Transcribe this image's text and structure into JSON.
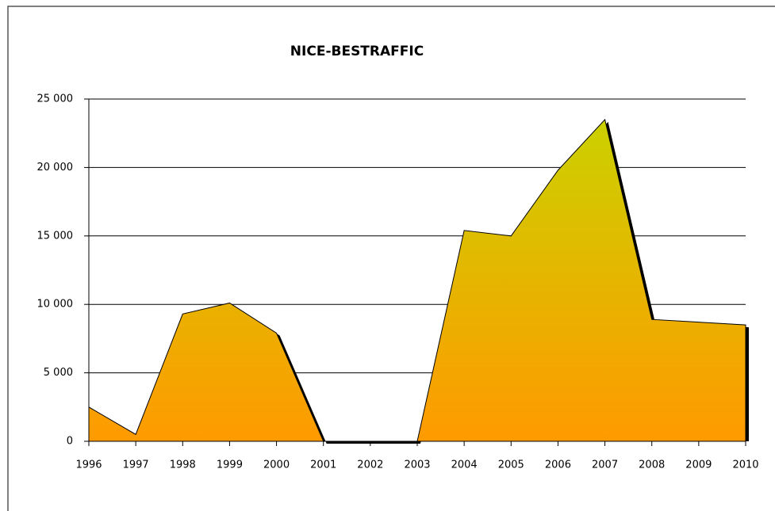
{
  "chart_data": {
    "type": "area",
    "title": "NICE-BESTRAFFIC",
    "categories": [
      "1996",
      "1997",
      "1998",
      "1999",
      "2000",
      "2001",
      "2002",
      "2003",
      "2004",
      "2005",
      "2006",
      "2007",
      "2008",
      "2009",
      "2010"
    ],
    "values": [
      2500,
      500,
      9300,
      10100,
      7900,
      0,
      0,
      0,
      15400,
      15000,
      19800,
      23500,
      8900,
      8700,
      8500
    ],
    "color_top": "#c8d400",
    "color_bottom": "#ff9a00",
    "ylim": [
      0,
      25000
    ],
    "yticks": [
      0,
      {
        "value": 5000,
        "label": "5 000"
      },
      {
        "value": 10000,
        "label": "10 000"
      },
      {
        "value": 15000,
        "label": "15 000"
      },
      {
        "value": 20000,
        "label": "20 000"
      },
      {
        "value": 25000,
        "label": "25 000"
      }
    ],
    "grid": true
  }
}
